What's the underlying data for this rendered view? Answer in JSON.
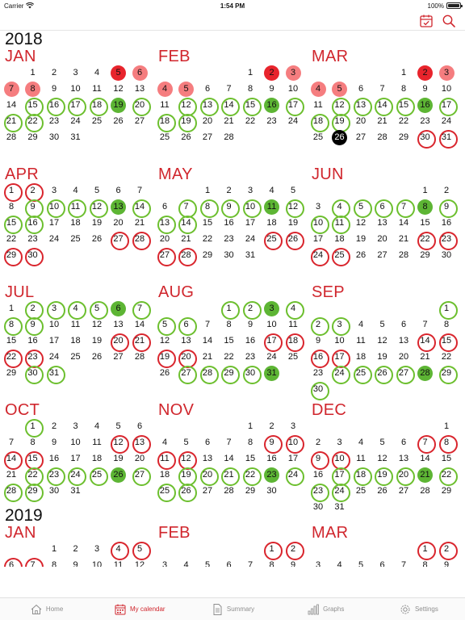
{
  "status_bar": {
    "carrier": "Carrier",
    "time": "1:54 PM",
    "battery": "100%"
  },
  "colors": {
    "accent": "#d0262d",
    "green": "#6cbf2e",
    "red": "#d9252d"
  },
  "nav": {
    "today_icon": "calendar-check-icon",
    "search_icon": "search-icon"
  },
  "years": [
    {
      "year": "2018",
      "months": [
        {
          "name": "JAN",
          "start": 1,
          "days": 31,
          "marks": {
            "5": "rf",
            "6": "rl",
            "7": "rl",
            "8": "rl",
            "15": "gc",
            "16": "gc",
            "17": "gc",
            "18": "gc",
            "19": "gf",
            "20": "gc",
            "21": "gc",
            "22": "gc"
          }
        },
        {
          "name": "FEB",
          "start": 4,
          "days": 28,
          "marks": {
            "2": "rf",
            "3": "rl",
            "4": "rl",
            "5": "rl",
            "12": "gc",
            "13": "gc",
            "14": "gc",
            "15": "gc",
            "16": "gf",
            "17": "gc",
            "18": "gc",
            "19": "gc"
          }
        },
        {
          "name": "MAR",
          "start": 4,
          "days": 31,
          "marks": {
            "2": "rf",
            "3": "rl",
            "4": "rl",
            "5": "rl",
            "12": "gc",
            "13": "gc",
            "14": "gc",
            "15": "gc",
            "16": "gf",
            "17": "gc",
            "18": "gc",
            "19": "gc",
            "26": "today",
            "30": "rc",
            "31": "rc"
          }
        },
        {
          "name": "APR",
          "start": 0,
          "days": 30,
          "marks": {
            "1": "rc",
            "2": "rc",
            "9": "gc",
            "10": "gc",
            "11": "gc",
            "12": "gc",
            "13": "gf",
            "14": "gc",
            "15": "gc",
            "16": "gc",
            "27": "rc",
            "28": "rc",
            "29": "rc",
            "30": "rc"
          }
        },
        {
          "name": "MAY",
          "start": 2,
          "days": 31,
          "marks": {
            "7": "gc",
            "8": "gc",
            "9": "gc",
            "10": "gc",
            "11": "gf",
            "12": "gc",
            "13": "gc",
            "14": "gc",
            "25": "rc",
            "26": "rc",
            "27": "rc",
            "28": "rc"
          }
        },
        {
          "name": "JUN",
          "start": 5,
          "days": 30,
          "marks": {
            "4": "gc",
            "5": "gc",
            "6": "gc",
            "7": "gc",
            "8": "gf",
            "9": "gc",
            "10": "gc",
            "11": "gc",
            "22": "rc",
            "23": "rc",
            "24": "rc",
            "25": "rc"
          }
        },
        {
          "name": "JUL",
          "start": 0,
          "days": 31,
          "marks": {
            "2": "gc",
            "3": "gc",
            "4": "gc",
            "5": "gc",
            "6": "gf",
            "7": "gc",
            "8": "gc",
            "9": "gc",
            "20": "rc",
            "21": "rc",
            "22": "rc",
            "23": "rc",
            "30": "gc",
            "31": "gc"
          }
        },
        {
          "name": "AUG",
          "start": 3,
          "days": 31,
          "marks": {
            "1": "gc",
            "2": "gc",
            "3": "gf",
            "4": "gc",
            "5": "gc",
            "6": "gc",
            "17": "rc",
            "18": "rc",
            "19": "rc",
            "20": "rc",
            "27": "gc",
            "28": "gc",
            "29": "gc",
            "30": "gc",
            "31": "gf"
          }
        },
        {
          "name": "SEP",
          "start": 6,
          "days": 30,
          "marks": {
            "1": "gc",
            "2": "gc",
            "3": "gc",
            "14": "rc",
            "15": "rc",
            "16": "rc",
            "17": "rc",
            "24": "gc",
            "25": "gc",
            "26": "gc",
            "27": "gc",
            "28": "gf",
            "29": "gc",
            "30": "gc"
          }
        },
        {
          "name": "OCT",
          "start": 1,
          "days": 31,
          "marks": {
            "1": "gc",
            "12": "rc",
            "13": "rc",
            "14": "rc",
            "15": "rc",
            "22": "gc",
            "23": "gc",
            "24": "gc",
            "25": "gc",
            "26": "gf",
            "27": "gc",
            "28": "gc",
            "29": "gc"
          }
        },
        {
          "name": "NOV",
          "start": 4,
          "days": 30,
          "marks": {
            "9": "rc",
            "10": "rc",
            "11": "rc",
            "12": "rc",
            "19": "gc",
            "20": "gc",
            "21": "gc",
            "22": "gc",
            "23": "gf",
            "24": "gc",
            "25": "gc",
            "26": "gc"
          }
        },
        {
          "name": "DEC",
          "start": 6,
          "days": 31,
          "marks": {
            "7": "rc",
            "8": "rc",
            "9": "rc",
            "10": "rc",
            "17": "gc",
            "18": "gc",
            "19": "gc",
            "20": "gc",
            "21": "gf",
            "22": "gc",
            "23": "gc",
            "24": "gc"
          }
        }
      ]
    },
    {
      "year": "2019",
      "months": [
        {
          "name": "JAN",
          "start": 2,
          "days": 31,
          "marks": {
            "4": "rc",
            "5": "rc",
            "6": "rc",
            "7": "rc"
          }
        },
        {
          "name": "FEB",
          "start": 5,
          "days": 28,
          "marks": {
            "1": "rc",
            "2": "rc"
          }
        },
        {
          "name": "MAR",
          "start": 5,
          "days": 31,
          "marks": {
            "1": "rc",
            "2": "rc"
          }
        }
      ]
    }
  ],
  "tabs": [
    {
      "label": "Home",
      "icon": "home-icon",
      "active": false
    },
    {
      "label": "My calendar",
      "icon": "calendar-icon",
      "active": true
    },
    {
      "label": "Summary",
      "icon": "document-icon",
      "active": false
    },
    {
      "label": "Graphs",
      "icon": "bar-chart-icon",
      "active": false
    },
    {
      "label": "Settings",
      "icon": "gear-icon",
      "active": false
    }
  ]
}
